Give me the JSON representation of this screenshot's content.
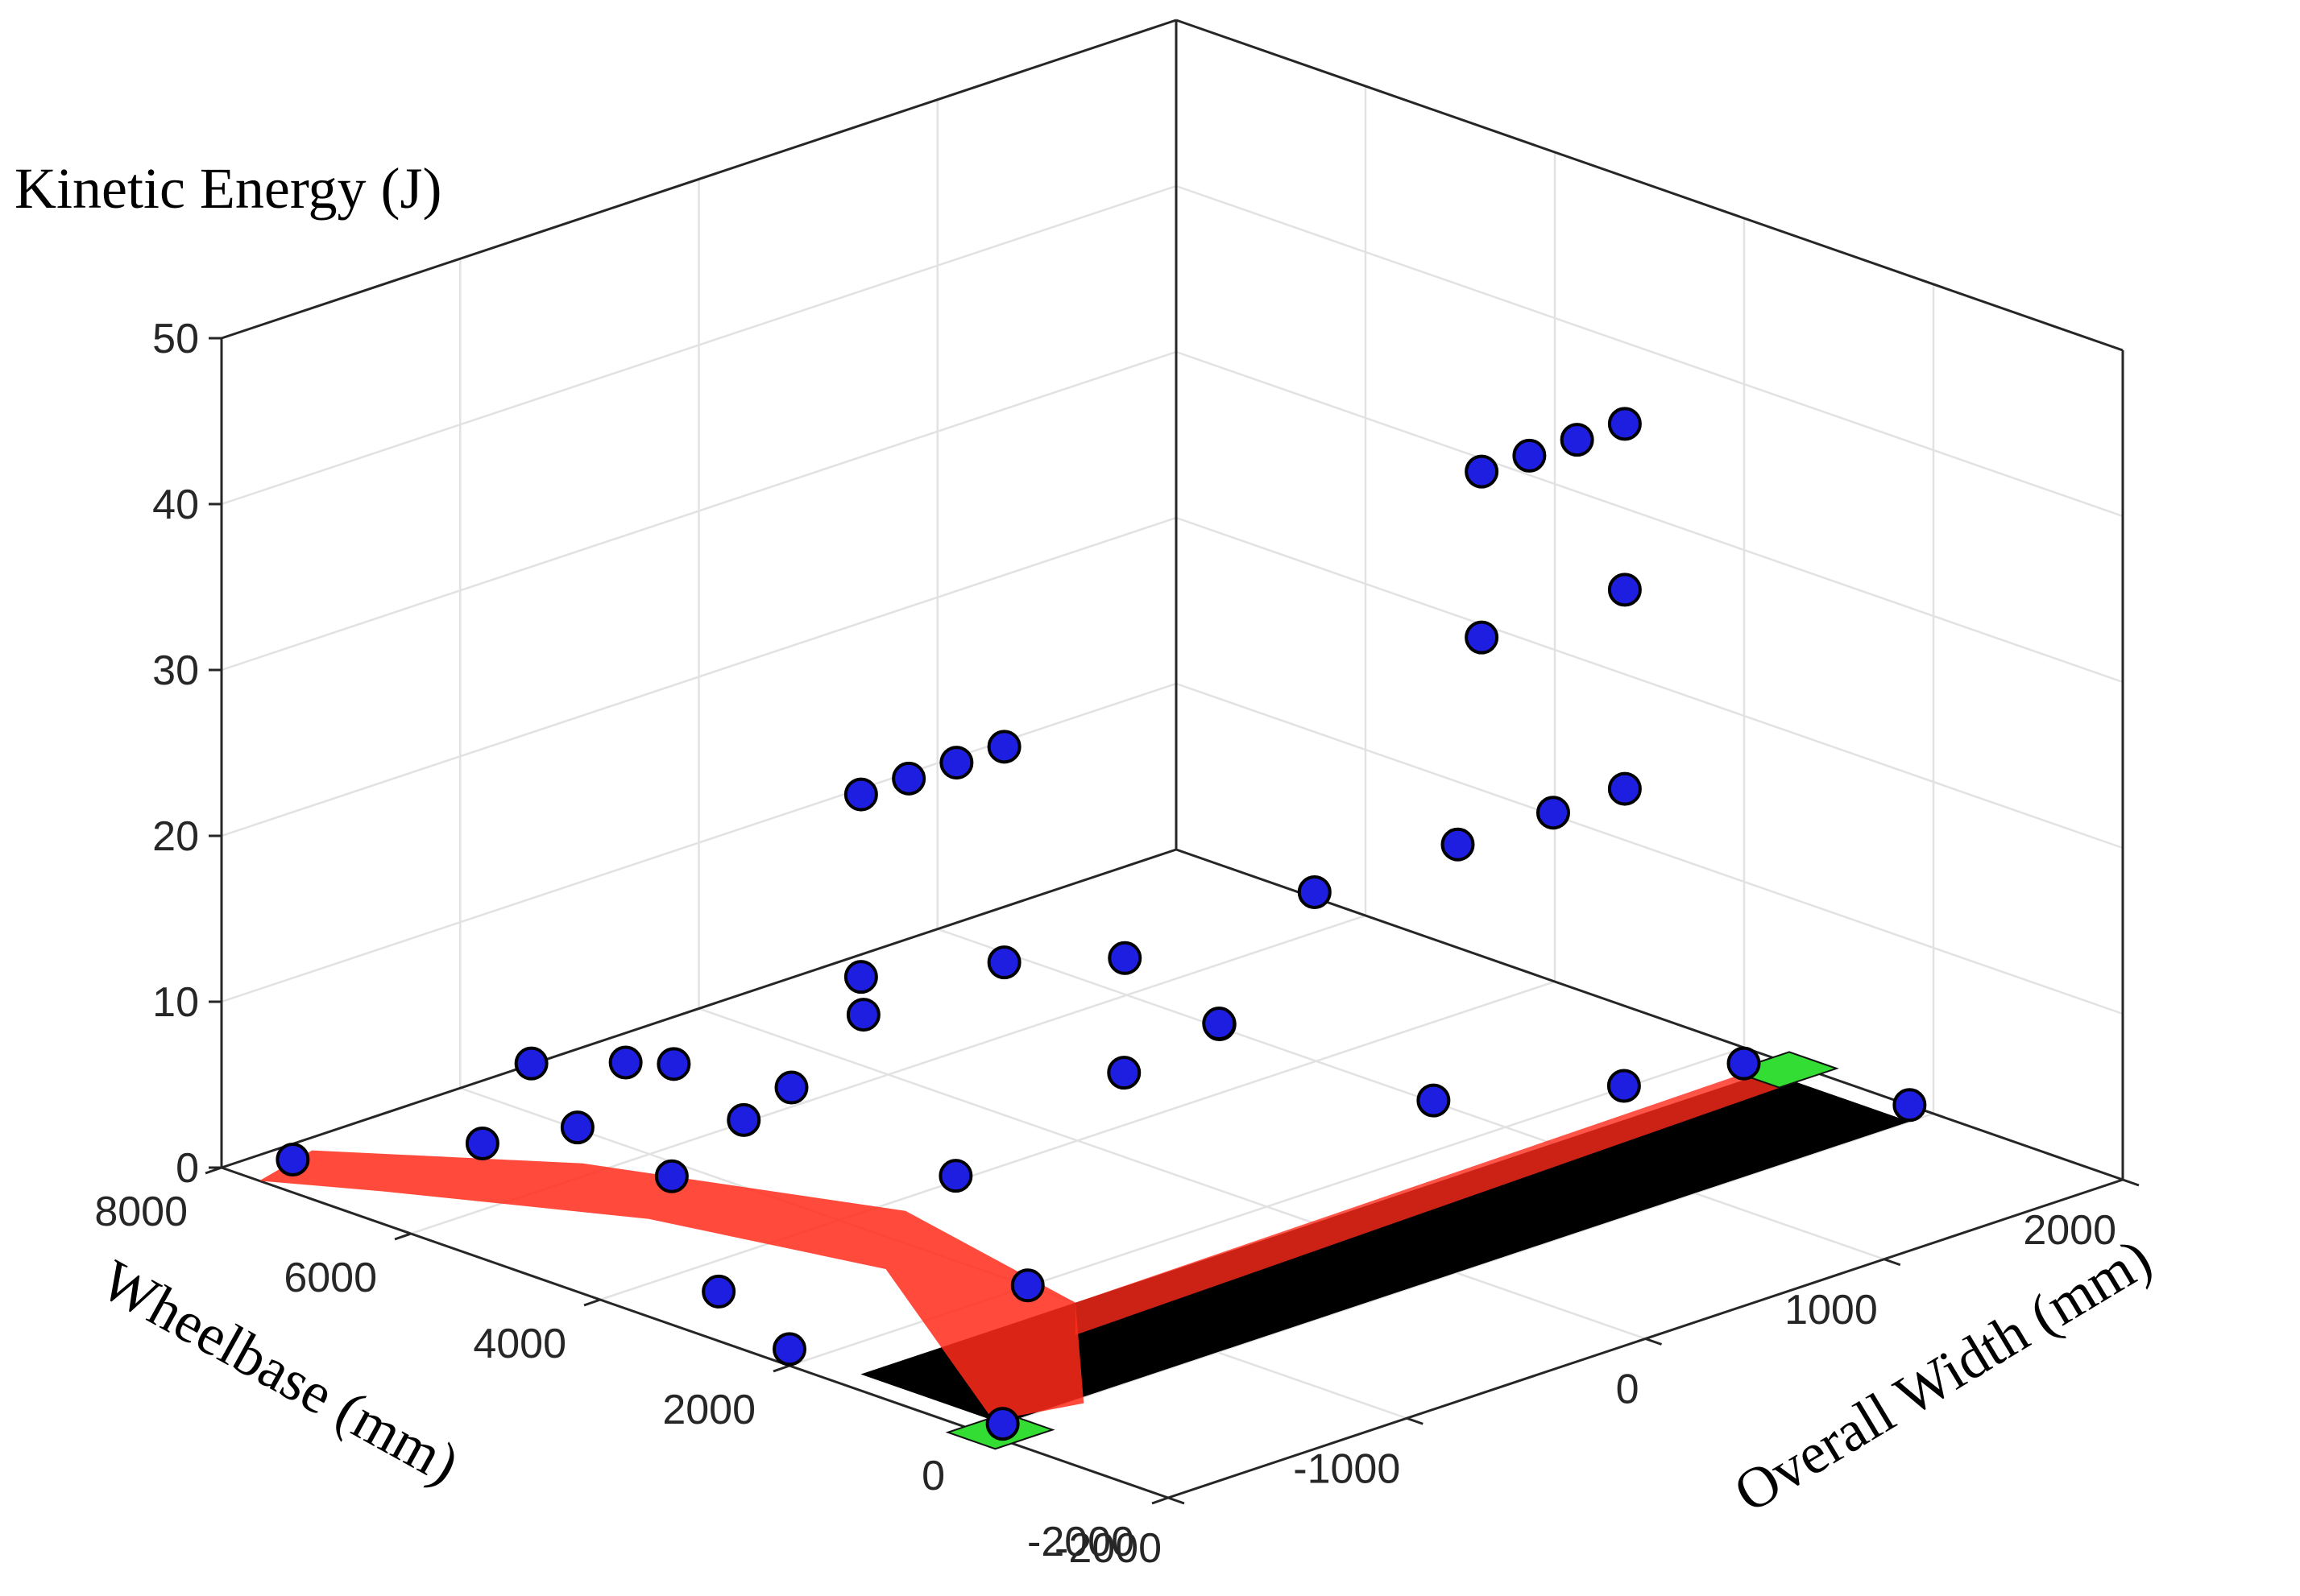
{
  "chart_data": {
    "type": "scatter",
    "title": "",
    "zlabel": "Kinetic Energy (J)",
    "ylabel": "Wheelbase (mm)",
    "xlabel": "Overall Width (mm)",
    "x_ticks": [
      "-2000",
      "-1000",
      "0",
      "1000",
      "2000"
    ],
    "y_ticks": [
      "-2000",
      "0",
      "2000",
      "4000",
      "6000",
      "8000"
    ],
    "z_ticks": [
      "0",
      "10",
      "20",
      "30",
      "40",
      "50"
    ],
    "xlim": [
      -2000,
      2000
    ],
    "ylim": [
      -2000,
      8000
    ],
    "zlim": [
      0,
      50
    ],
    "grid": true,
    "colors": {
      "marker_fill": "#1e1ee0",
      "marker_edge": "#000000",
      "floor_trace": "#ff2a1a",
      "base_plate": "#000000",
      "corner_markers": "#33dd33"
    },
    "series": [
      {
        "marker": "circle",
        "points": [
          {
            "x": -1700,
            "y": 2000,
            "z": 33
          },
          {
            "x": -1500,
            "y": 2000,
            "z": 33
          },
          {
            "x": -1300,
            "y": 2000,
            "z": 33
          },
          {
            "x": -1100,
            "y": 2000,
            "z": 33
          },
          {
            "x": -1700,
            "y": 2000,
            "z": 22
          },
          {
            "x": -1100,
            "y": 2000,
            "z": 20
          },
          {
            "x": -1700,
            "y": 1000,
            "z": 12
          },
          {
            "x": 900,
            "y": 2000,
            "z": 40
          },
          {
            "x": 1100,
            "y": 2000,
            "z": 40
          },
          {
            "x": 1300,
            "y": 2000,
            "z": 40
          },
          {
            "x": 1500,
            "y": 2000,
            "z": 40
          },
          {
            "x": 900,
            "y": 2000,
            "z": 30
          },
          {
            "x": 1500,
            "y": 2000,
            "z": 30
          },
          {
            "x": 200,
            "y": 2000,
            "z": 18
          },
          {
            "x": 800,
            "y": 2000,
            "z": 18
          },
          {
            "x": 1200,
            "y": 2000,
            "z": 18
          },
          {
            "x": 1500,
            "y": 2000,
            "z": 18
          },
          {
            "x": -200,
            "y": 2000,
            "z": 12
          },
          {
            "x": -400,
            "y": 2500,
            "z": 9
          },
          {
            "x": 0,
            "y": 2500,
            "z": 10
          },
          {
            "x": 0,
            "y": 3500,
            "z": 12
          },
          {
            "x": -1000,
            "y": 4500,
            "z": 7
          },
          {
            "x": -500,
            "y": 5000,
            "z": 8
          },
          {
            "x": -700,
            "y": 6500,
            "z": 3
          },
          {
            "x": -900,
            "y": 7500,
            "z": 2
          },
          {
            "x": -1100,
            "y": 6000,
            "z": 6
          },
          {
            "x": -1200,
            "y": 4500,
            "z": 6
          },
          {
            "x": -1700,
            "y": 4000,
            "z": 6
          },
          {
            "x": -1900,
            "y": 7500,
            "z": 1
          },
          {
            "x": -1700,
            "y": 6000,
            "z": 4
          },
          {
            "x": -1500,
            "y": 5500,
            "z": 5
          },
          {
            "x": -1900,
            "y": 3000,
            "z": 2
          },
          {
            "x": -2000,
            "y": 2000,
            "z": 1
          },
          {
            "x": -1200,
            "y": 1500,
            "z": 2
          },
          {
            "x": 500,
            "y": 1500,
            "z": 5
          },
          {
            "x": 1100,
            "y": 1000,
            "z": 4
          },
          {
            "x": 1800,
            "y": 1500,
            "z": 1
          },
          {
            "x": 1900,
            "y": 0,
            "z": 1
          },
          {
            "x": -1900,
            "y": 0,
            "z": 0
          }
        ]
      }
    ]
  }
}
